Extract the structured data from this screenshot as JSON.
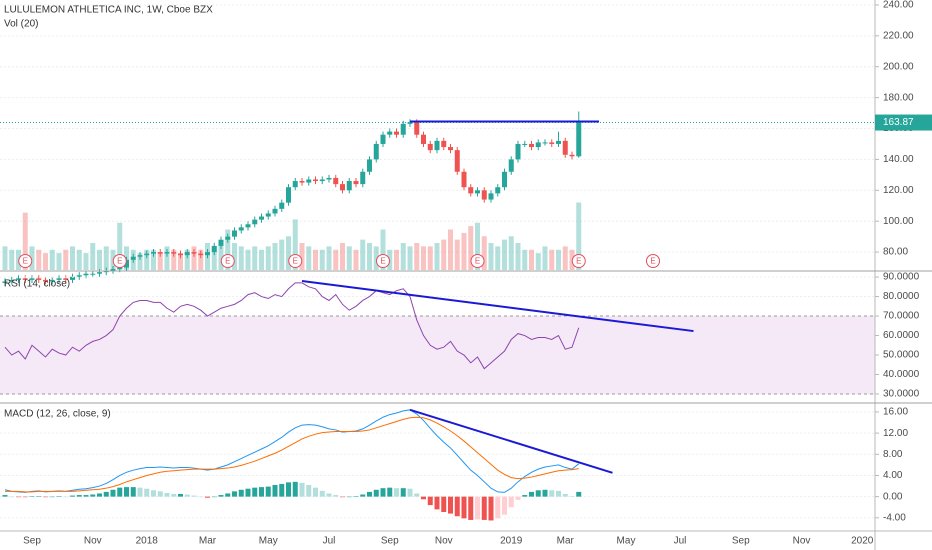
{
  "chart_data": [
    {
      "type": "candlestick",
      "title": "LULULEMON ATHLETICA INC, 1W, Cboe BZX",
      "categories": [
        null,
        null,
        null,
        null,
        "Sep",
        null,
        null,
        null,
        null,
        null,
        null,
        null,
        null,
        "Nov",
        null,
        null,
        null,
        null,
        null,
        null,
        null,
        "2018",
        null,
        null,
        null,
        null,
        null,
        null,
        null,
        null,
        "Mar",
        null,
        null,
        null,
        null,
        null,
        null,
        null,
        null,
        "May",
        null,
        null,
        null,
        null,
        null,
        null,
        null,
        null,
        "Jul",
        null,
        null,
        null,
        null,
        null,
        null,
        null,
        null,
        "Sep",
        null,
        null,
        null,
        null,
        null,
        null,
        null,
        "Nov",
        null,
        null,
        null,
        null,
        null,
        null,
        null,
        null,
        null,
        "2019",
        null,
        null,
        null,
        null,
        null,
        null,
        null,
        "Mar",
        null,
        null
      ],
      "future_categories": [
        null,
        null,
        null,
        null,
        null,
        null,
        "May",
        null,
        null,
        null,
        null,
        null,
        null,
        null,
        "Jul",
        null,
        null,
        null,
        null,
        null,
        null,
        null,
        null,
        "Sep",
        null,
        null,
        null,
        null,
        null,
        null,
        null,
        null,
        "Nov",
        null,
        null,
        null,
        null,
        null,
        null,
        null,
        null,
        "2020",
        null,
        null
      ],
      "open": [
        60,
        61,
        62,
        63,
        62,
        63,
        62,
        61,
        62,
        63,
        62,
        64,
        65,
        66,
        66,
        67,
        68,
        69,
        70,
        75,
        77,
        78,
        79,
        80,
        79,
        80,
        79,
        78,
        80,
        79,
        78,
        80,
        84,
        88,
        90,
        94,
        96,
        98,
        101,
        103,
        105,
        108,
        112,
        122,
        126,
        125,
        127,
        126,
        127,
        128,
        124,
        120,
        126,
        124,
        132,
        140,
        150,
        156,
        158,
        156,
        163,
        164,
        156,
        150,
        146,
        152,
        148,
        146,
        132,
        122,
        118,
        120,
        114,
        118,
        122,
        132,
        140,
        150,
        150,
        148,
        151,
        151,
        150,
        152,
        143,
        142
      ],
      "high": [
        63,
        64,
        65,
        65,
        65,
        65,
        64,
        64,
        65,
        65,
        66,
        67,
        68,
        68,
        69,
        70,
        71,
        72,
        77,
        79,
        80,
        81,
        82,
        82,
        82,
        82,
        81,
        82,
        82,
        81,
        82,
        86,
        90,
        92,
        96,
        98,
        100,
        103,
        105,
        107,
        110,
        114,
        124,
        128,
        128,
        129,
        129,
        129,
        130,
        130,
        126,
        128,
        128,
        134,
        142,
        152,
        158,
        160,
        160,
        165,
        166,
        166,
        158,
        152,
        154,
        154,
        150,
        148,
        134,
        124,
        122,
        122,
        120,
        124,
        134,
        142,
        152,
        152,
        152,
        153,
        153,
        153,
        158,
        154,
        145,
        171
      ],
      "low": [
        58,
        59,
        60,
        60,
        60,
        60,
        59,
        59,
        60,
        60,
        60,
        62,
        63,
        64,
        64,
        65,
        66,
        67,
        68,
        73,
        75,
        76,
        77,
        77,
        77,
        77,
        76,
        76,
        77,
        76,
        76,
        78,
        82,
        86,
        88,
        92,
        94,
        96,
        99,
        101,
        103,
        106,
        110,
        120,
        123,
        123,
        124,
        124,
        125,
        122,
        118,
        118,
        122,
        122,
        130,
        138,
        148,
        154,
        154,
        154,
        161,
        154,
        148,
        144,
        144,
        146,
        144,
        130,
        120,
        116,
        116,
        112,
        112,
        116,
        120,
        130,
        138,
        148,
        146,
        146,
        149,
        148,
        148,
        141,
        140,
        141
      ],
      "close": [
        61,
        62,
        63,
        62,
        63,
        62,
        61,
        62,
        63,
        62,
        64,
        65,
        66,
        66,
        67,
        68,
        69,
        70,
        75,
        77,
        78,
        79,
        80,
        79,
        80,
        79,
        78,
        80,
        79,
        78,
        80,
        84,
        88,
        90,
        94,
        96,
        98,
        101,
        103,
        105,
        108,
        112,
        122,
        126,
        125,
        127,
        126,
        127,
        128,
        124,
        120,
        126,
        124,
        132,
        140,
        150,
        156,
        158,
        156,
        163,
        164,
        156,
        150,
        146,
        152,
        148,
        146,
        132,
        122,
        118,
        120,
        114,
        118,
        122,
        132,
        140,
        150,
        150,
        148,
        151,
        151,
        150,
        152,
        143,
        142,
        163.87
      ],
      "up_color": "#26a69a",
      "down_color": "#ef5350",
      "ylim": [
        68.4,
        243.2
      ],
      "yticks": [
        {
          "value": 80,
          "label": "80.00"
        },
        {
          "value": 100,
          "label": "100.00"
        },
        {
          "value": 120,
          "label": "120.00"
        },
        {
          "value": 140,
          "label": "140.00"
        },
        {
          "value": 160,
          "label": "160.00"
        },
        {
          "value": 180,
          "label": "180.00"
        },
        {
          "value": 200,
          "label": "200.00"
        },
        {
          "value": 220,
          "label": "220.00"
        },
        {
          "value": 240,
          "label": "240.00"
        }
      ],
      "volume": {
        "name": "Vol (20)",
        "ylim": [
          0,
          80
        ],
        "values": [
          7,
          6,
          6,
          17,
          7,
          6,
          5,
          6,
          5,
          6,
          7,
          6,
          5,
          8,
          6,
          7,
          6,
          14,
          7,
          6,
          5,
          6,
          6,
          5,
          7,
          6,
          5,
          6,
          7,
          6,
          8,
          7,
          8,
          12,
          8,
          7,
          6,
          7,
          6,
          7,
          8,
          9,
          10,
          15,
          8,
          7,
          6,
          6,
          7,
          6,
          8,
          7,
          6,
          9,
          8,
          7,
          12,
          6,
          6,
          8,
          7,
          8,
          7,
          7,
          8,
          9,
          12,
          9,
          11,
          13,
          14,
          10,
          8,
          7,
          9,
          10,
          8,
          6,
          6,
          5,
          7,
          6,
          6,
          7,
          6,
          20
        ]
      },
      "earnings": {
        "label": "E",
        "weeks": [
          3,
          17,
          33,
          43,
          56,
          70,
          85,
          96
        ],
        "color": "#e0505f"
      },
      "trendlines": [
        {
          "x": [
            60,
            88
          ],
          "y": [
            164.5,
            164.5
          ],
          "color": "#1a1ad6"
        }
      ]
    },
    {
      "type": "line",
      "title": "RSI (14, close)",
      "color": "#8e44ad",
      "values": [
        54,
        50,
        52,
        48,
        55,
        52,
        49,
        53,
        51,
        50,
        54,
        52,
        55,
        57,
        58,
        60,
        63,
        70,
        74,
        77,
        78,
        78,
        77,
        77,
        74,
        72,
        75,
        76,
        75,
        73,
        70,
        72,
        74,
        75,
        76,
        78,
        81,
        82,
        80,
        79,
        81,
        80,
        84,
        87,
        87,
        85,
        84,
        80,
        78,
        81,
        76,
        73,
        75,
        78,
        80,
        83,
        82,
        81,
        83,
        84,
        80,
        68,
        60,
        55,
        53,
        54,
        57,
        52,
        50,
        46,
        49,
        43,
        46,
        49,
        52,
        58,
        61,
        60,
        58,
        59,
        59,
        58,
        60,
        53,
        54,
        64
      ],
      "band": [
        30,
        70
      ],
      "band_color": "#9c27b0",
      "ylim": [
        25.9,
        92.6
      ],
      "yticks": [
        {
          "value": 30,
          "label": "30.0000"
        },
        {
          "value": 40,
          "label": "40.0000"
        },
        {
          "value": 50,
          "label": "50.0000"
        },
        {
          "value": 60,
          "label": "60.0000"
        },
        {
          "value": 70,
          "label": "70.0000"
        },
        {
          "value": 80,
          "label": "80.0000"
        },
        {
          "value": 90,
          "label": "90.0000"
        }
      ],
      "trendlines": [
        {
          "x": [
            44,
            102
          ],
          "y": [
            88,
            62.3
          ],
          "color": "#1a1ad6"
        }
      ]
    },
    {
      "type": "macd",
      "title": "MACD (12, 26, close, 9)",
      "series": [
        {
          "color": "#2196f3",
          "values": [
            1.3,
            1.0,
            0.9,
            0.8,
            1.0,
            1.1,
            0.9,
            1.0,
            1.1,
            1.0,
            1.2,
            1.4,
            1.5,
            1.7,
            2.0,
            2.5,
            3.2,
            4.0,
            4.6,
            5.0,
            5.3,
            5.5,
            5.5,
            5.6,
            5.5,
            5.4,
            5.5,
            5.5,
            5.4,
            5.2,
            5.0,
            5.2,
            5.6,
            6.0,
            6.6,
            7.2,
            7.8,
            8.4,
            9.0,
            9.6,
            10.4,
            11.2,
            12.2,
            13.0,
            13.5,
            13.6,
            13.5,
            13.2,
            12.8,
            12.6,
            12.2,
            12.3,
            12.4,
            12.8,
            13.5,
            14.3,
            15.0,
            15.5,
            15.8,
            16.2,
            16.4,
            15.6,
            14.4,
            12.9,
            11.5,
            10.3,
            9.2,
            7.8,
            6.4,
            5.0,
            4.0,
            2.8,
            1.6,
            0.9,
            0.8,
            1.6,
            2.8,
            3.8,
            4.6,
            5.2,
            5.6,
            5.8,
            6.0,
            5.5,
            5.2,
            6.2
          ]
        },
        {
          "color": "#ff6d00",
          "values": [
            1.0,
            1.0,
            1.0,
            0.9,
            0.9,
            1.0,
            1.0,
            1.0,
            1.0,
            1.0,
            1.0,
            1.1,
            1.2,
            1.3,
            1.4,
            1.6,
            1.9,
            2.3,
            2.8,
            3.2,
            3.6,
            4.0,
            4.3,
            4.6,
            4.8,
            4.9,
            5.0,
            5.1,
            5.2,
            5.2,
            5.2,
            5.2,
            5.3,
            5.4,
            5.6,
            5.9,
            6.3,
            6.7,
            7.2,
            7.7,
            8.2,
            8.8,
            9.5,
            10.2,
            10.9,
            11.4,
            11.8,
            12.1,
            12.2,
            12.3,
            12.3,
            12.3,
            12.3,
            12.4,
            12.6,
            13.0,
            13.4,
            13.8,
            14.2,
            14.6,
            14.9,
            15.0,
            14.9,
            14.5,
            13.9,
            13.2,
            12.4,
            11.5,
            10.5,
            9.4,
            8.3,
            7.2,
            6.1,
            5.0,
            4.2,
            3.6,
            3.4,
            3.5,
            3.7,
            4.0,
            4.3,
            4.6,
            4.9,
            5.0,
            5.1,
            5.3
          ]
        }
      ],
      "histogram": {
        "values": [
          0.3,
          0,
          -0.1,
          -0.1,
          0.1,
          0.1,
          -0.1,
          0,
          0.1,
          0,
          0.2,
          0.3,
          0.3,
          0.4,
          0.6,
          0.9,
          1.3,
          1.7,
          1.8,
          1.8,
          1.7,
          1.5,
          1.2,
          1.0,
          0.7,
          0.5,
          0.5,
          0.4,
          0.2,
          0,
          -0.2,
          0,
          0.3,
          0.6,
          1.0,
          1.3,
          1.5,
          1.7,
          1.8,
          1.9,
          2.2,
          2.4,
          2.7,
          2.8,
          2.6,
          2.2,
          1.7,
          1.1,
          0.6,
          0.3,
          -0.1,
          0,
          0.1,
          0.4,
          0.9,
          1.3,
          1.6,
          1.7,
          1.6,
          1.6,
          1.5,
          0.6,
          -0.5,
          -1.6,
          -2.4,
          -2.9,
          -3.2,
          -3.7,
          -4.1,
          -4.4,
          -4.3,
          -4.4,
          -4.5,
          -4.1,
          -3.4,
          -2.0,
          -0.6,
          0.3,
          0.9,
          1.2,
          1.3,
          1.2,
          1.1,
          0.5,
          0.1,
          0.9
        ],
        "colors": {
          "pos_up": "#26a69a",
          "pos_down": "#b2dfdb",
          "neg_down": "#ef5350",
          "neg_up": "#ffcdd2"
        }
      },
      "ylim": [
        -6.3,
        17.5
      ],
      "yticks": [
        {
          "value": -4,
          "label": "-4.00"
        },
        {
          "value": 0,
          "label": "0.00"
        },
        {
          "value": 4,
          "label": "4.00"
        },
        {
          "value": 8,
          "label": "8.00"
        },
        {
          "value": 12,
          "label": "12.00"
        },
        {
          "value": 16,
          "label": "16.00"
        }
      ],
      "trendlines": [
        {
          "x": [
            60,
            90
          ],
          "y": [
            16.4,
            4.5
          ],
          "color": "#1a1ad6"
        }
      ]
    }
  ]
}
